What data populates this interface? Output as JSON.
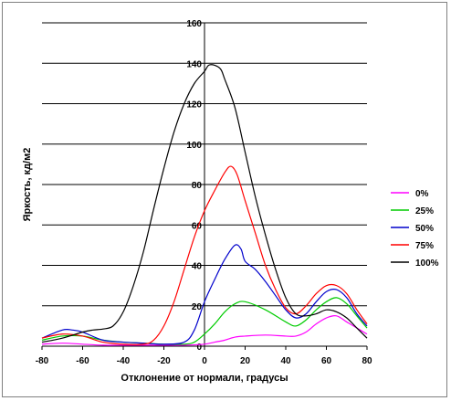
{
  "chart_data": {
    "type": "line",
    "title": "",
    "xlabel": "Отклонение от нормали, градусы",
    "ylabel": "Яркость, кд/м2",
    "xlim": [
      -80,
      80
    ],
    "ylim": [
      0,
      160
    ],
    "xticks": [
      -80,
      -60,
      -40,
      -20,
      0,
      20,
      40,
      60,
      80
    ],
    "yticks": [
      0,
      20,
      40,
      60,
      80,
      100,
      120,
      140,
      160
    ],
    "grid": "horizontal",
    "legend": "right",
    "series": [
      {
        "name": "0%",
        "color": "#ff00ff",
        "points": [
          [
            -80,
            1
          ],
          [
            -70,
            1.5
          ],
          [
            -60,
            1
          ],
          [
            -50,
            0.5
          ],
          [
            -40,
            0.5
          ],
          [
            -30,
            0.5
          ],
          [
            -20,
            0.5
          ],
          [
            -10,
            0.5
          ],
          [
            0,
            1
          ],
          [
            5,
            2
          ],
          [
            10,
            3
          ],
          [
            15,
            4.5
          ],
          [
            20,
            5
          ],
          [
            30,
            5.5
          ],
          [
            40,
            5
          ],
          [
            45,
            5
          ],
          [
            50,
            7
          ],
          [
            55,
            11
          ],
          [
            60,
            14
          ],
          [
            65,
            15
          ],
          [
            70,
            12
          ],
          [
            75,
            9
          ],
          [
            80,
            6
          ]
        ]
      },
      {
        "name": "25%",
        "color": "#00cc00",
        "points": [
          [
            -80,
            3
          ],
          [
            -70,
            5
          ],
          [
            -60,
            5
          ],
          [
            -50,
            3
          ],
          [
            -40,
            2
          ],
          [
            -30,
            1.5
          ],
          [
            -20,
            1
          ],
          [
            -10,
            1
          ],
          [
            -5,
            2
          ],
          [
            0,
            6
          ],
          [
            5,
            11
          ],
          [
            10,
            17
          ],
          [
            15,
            21
          ],
          [
            20,
            22
          ],
          [
            30,
            18
          ],
          [
            40,
            12
          ],
          [
            45,
            10
          ],
          [
            50,
            13
          ],
          [
            55,
            18
          ],
          [
            60,
            22
          ],
          [
            65,
            24
          ],
          [
            70,
            21
          ],
          [
            75,
            15
          ],
          [
            80,
            9
          ]
        ]
      },
      {
        "name": "50%",
        "color": "#0000cc",
        "points": [
          [
            -80,
            4
          ],
          [
            -70,
            8
          ],
          [
            -65,
            8
          ],
          [
            -60,
            7
          ],
          [
            -50,
            3
          ],
          [
            -40,
            2
          ],
          [
            -30,
            1.5
          ],
          [
            -20,
            1
          ],
          [
            -10,
            2
          ],
          [
            -5,
            8
          ],
          [
            0,
            22
          ],
          [
            5,
            33
          ],
          [
            10,
            43
          ],
          [
            15,
            50
          ],
          [
            18,
            48
          ],
          [
            20,
            42
          ],
          [
            25,
            38
          ],
          [
            30,
            32
          ],
          [
            35,
            25
          ],
          [
            40,
            18
          ],
          [
            45,
            14
          ],
          [
            50,
            16
          ],
          [
            55,
            22
          ],
          [
            60,
            27
          ],
          [
            65,
            28
          ],
          [
            70,
            24
          ],
          [
            75,
            16
          ],
          [
            80,
            10
          ]
        ]
      },
      {
        "name": "75%",
        "color": "#ff0000",
        "points": [
          [
            -80,
            4
          ],
          [
            -70,
            6
          ],
          [
            -60,
            5
          ],
          [
            -50,
            2
          ],
          [
            -40,
            1
          ],
          [
            -30,
            1
          ],
          [
            -25,
            3
          ],
          [
            -20,
            10
          ],
          [
            -15,
            22
          ],
          [
            -10,
            38
          ],
          [
            -5,
            54
          ],
          [
            0,
            67
          ],
          [
            5,
            77
          ],
          [
            10,
            86
          ],
          [
            13,
            89
          ],
          [
            16,
            85
          ],
          [
            20,
            72
          ],
          [
            25,
            56
          ],
          [
            30,
            40
          ],
          [
            35,
            28
          ],
          [
            40,
            19
          ],
          [
            45,
            16
          ],
          [
            50,
            20
          ],
          [
            55,
            26
          ],
          [
            60,
            30
          ],
          [
            65,
            30
          ],
          [
            70,
            26
          ],
          [
            75,
            18
          ],
          [
            80,
            11
          ]
        ]
      },
      {
        "name": "100%",
        "color": "#000000",
        "points": [
          [
            -80,
            2
          ],
          [
            -70,
            4
          ],
          [
            -60,
            7
          ],
          [
            -55,
            8
          ],
          [
            -50,
            8.5
          ],
          [
            -45,
            10
          ],
          [
            -40,
            17
          ],
          [
            -35,
            30
          ],
          [
            -30,
            47
          ],
          [
            -25,
            68
          ],
          [
            -20,
            88
          ],
          [
            -15,
            106
          ],
          [
            -10,
            120
          ],
          [
            -5,
            130
          ],
          [
            0,
            136
          ],
          [
            2,
            139
          ],
          [
            5,
            139
          ],
          [
            8,
            137
          ],
          [
            10,
            132
          ],
          [
            15,
            118
          ],
          [
            20,
            96
          ],
          [
            25,
            74
          ],
          [
            30,
            55
          ],
          [
            35,
            38
          ],
          [
            40,
            24
          ],
          [
            45,
            16
          ],
          [
            50,
            15
          ],
          [
            55,
            16
          ],
          [
            60,
            18
          ],
          [
            65,
            17
          ],
          [
            70,
            14
          ],
          [
            75,
            9
          ],
          [
            80,
            4
          ]
        ]
      }
    ]
  }
}
